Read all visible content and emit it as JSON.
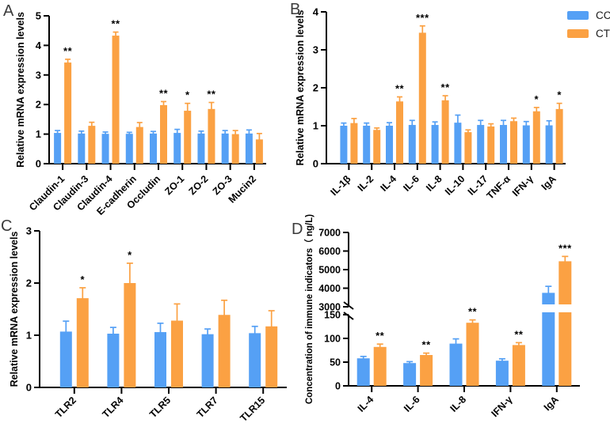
{
  "figure": {
    "background": "#ffffff"
  },
  "legend": {
    "position": "top-right",
    "items": [
      {
        "label": "CC",
        "color": "#55a0f5"
      },
      {
        "label": "CT",
        "color": "#fba143"
      }
    ]
  },
  "chart_data": [
    {
      "panel_label": "A",
      "type": "bar",
      "ylabel": "Relative mRNA expression levels",
      "ylim": [
        0,
        5
      ],
      "yticks": [
        0,
        1,
        2,
        3,
        4,
        5
      ],
      "grid": false,
      "categories": [
        "Claudin-1",
        "Claudin-3",
        "Claudin-4",
        "E-cadherin",
        "Occludin",
        "ZO-1",
        "ZO-2",
        "ZO-3",
        "Mucin2"
      ],
      "series": [
        {
          "name": "CC",
          "values": [
            1.04,
            1.02,
            1.01,
            1.01,
            1.02,
            1.04,
            1.02,
            1.02,
            1.02
          ],
          "errors": [
            0.08,
            0.08,
            0.06,
            0.05,
            0.07,
            0.12,
            0.08,
            0.1,
            0.12
          ]
        },
        {
          "name": "CT",
          "values": [
            3.42,
            1.28,
            4.33,
            1.24,
            1.98,
            1.79,
            1.85,
            1.0,
            0.82
          ],
          "errors": [
            0.11,
            0.12,
            0.12,
            0.15,
            0.12,
            0.25,
            0.22,
            0.12,
            0.2
          ]
        }
      ],
      "significance": [
        "**",
        "",
        "**",
        "",
        "**",
        "*",
        "**",
        "",
        ""
      ]
    },
    {
      "panel_label": "B",
      "type": "bar",
      "ylabel": "Relative mRNA expression levels",
      "ylim": [
        0,
        4
      ],
      "yticks": [
        0,
        1,
        2,
        3,
        4
      ],
      "grid": false,
      "categories": [
        "IL-1β",
        "IL-2",
        "IL-4",
        "IL-6",
        "IL-8",
        "IL-10",
        "IL-17",
        "TNF-α",
        "IFN-γ",
        "IgA"
      ],
      "series": [
        {
          "name": "CC",
          "values": [
            1.0,
            1.0,
            1.0,
            1.02,
            1.02,
            1.08,
            1.02,
            1.02,
            1.01,
            1.01
          ],
          "errors": [
            0.07,
            0.07,
            0.08,
            0.12,
            0.08,
            0.2,
            0.12,
            0.12,
            0.1,
            0.12
          ]
        },
        {
          "name": "CT",
          "values": [
            1.07,
            0.89,
            1.64,
            3.45,
            1.67,
            0.83,
            0.98,
            1.12,
            1.38,
            1.44
          ],
          "errors": [
            0.12,
            0.05,
            0.12,
            0.18,
            0.12,
            0.06,
            0.07,
            0.08,
            0.1,
            0.15
          ]
        }
      ],
      "significance": [
        "",
        "",
        "**",
        "***",
        "**",
        "",
        "",
        "",
        "*",
        "*"
      ]
    },
    {
      "panel_label": "C",
      "type": "bar",
      "ylabel": "Relative mRNA expression levels",
      "ylim": [
        0,
        3
      ],
      "yticks": [
        0,
        1,
        2,
        3
      ],
      "grid": false,
      "categories": [
        "TLR2",
        "TLR4",
        "TLR5",
        "TLR7",
        "TLR15"
      ],
      "series": [
        {
          "name": "CC",
          "values": [
            1.07,
            1.03,
            1.06,
            1.02,
            1.04
          ],
          "errors": [
            0.2,
            0.12,
            0.17,
            0.1,
            0.13
          ]
        },
        {
          "name": "CT",
          "values": [
            1.71,
            2.0,
            1.28,
            1.39,
            1.17
          ],
          "errors": [
            0.2,
            0.38,
            0.32,
            0.28,
            0.3
          ]
        }
      ],
      "significance": [
        "*",
        "*",
        "",
        "",
        ""
      ]
    },
    {
      "panel_label": "D",
      "type": "bar",
      "axis_break": true,
      "ylabel": "Concentration of immune indicators（ ng/L)",
      "segments": [
        {
          "ylim": [
            0,
            150
          ],
          "yticks": [
            0,
            50,
            100,
            150
          ]
        },
        {
          "ylim": [
            3000,
            7000
          ],
          "yticks": [
            3000,
            4000,
            5000,
            6000,
            7000
          ]
        }
      ],
      "grid": false,
      "categories": [
        "IL-4",
        "IL-6",
        "IL-8",
        "IFN-γ",
        "IgA"
      ],
      "series": [
        {
          "name": "CC",
          "values": [
            58,
            48,
            89,
            53,
            3750
          ],
          "errors": [
            4,
            3,
            10,
            4,
            350
          ]
        },
        {
          "name": "CT",
          "values": [
            82,
            65,
            133,
            86,
            5450
          ],
          "errors": [
            6,
            4,
            6,
            5,
            260
          ]
        }
      ],
      "significance": [
        "**",
        "**",
        "**",
        "**",
        "***"
      ]
    }
  ]
}
